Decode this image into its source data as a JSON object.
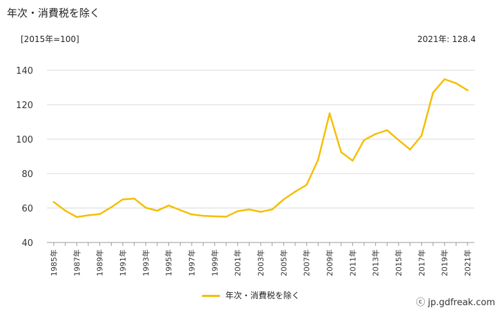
{
  "title": "年次・消費税を除く",
  "unit_label": "[2015年=100]",
  "latest_label": "2021年: 128.4",
  "source": "ⓒ jp.gdfreak.com",
  "colors": {
    "line": "#F5BE00",
    "grid": "#d9d9d9",
    "axis": "#999999"
  },
  "chart_data": {
    "type": "line",
    "title": "年次・消費税を除く",
    "xlabel": "",
    "ylabel": "[2015年=100]",
    "ylim": [
      40,
      140
    ],
    "yticks": [
      40,
      60,
      80,
      100,
      120,
      140
    ],
    "grid": true,
    "legend_position": "bottom",
    "x": [
      "1985年",
      "1986年",
      "1987年",
      "1988年",
      "1989年",
      "1990年",
      "1991年",
      "1992年",
      "1993年",
      "1994年",
      "1995年",
      "1996年",
      "1997年",
      "1998年",
      "1999年",
      "2000年",
      "2001年",
      "2002年",
      "2003年",
      "2004年",
      "2005年",
      "2006年",
      "2007年",
      "2008年",
      "2009年",
      "2010年",
      "2011年",
      "2012年",
      "2013年",
      "2014年",
      "2015年",
      "2016年",
      "2017年",
      "2018年",
      "2019年",
      "2020年",
      "2021年"
    ],
    "xtick_labels": [
      "1985年",
      "1987年",
      "1989年",
      "1991年",
      "1993年",
      "1995年",
      "1997年",
      "1999年",
      "2001年",
      "2003年",
      "2005年",
      "2007年",
      "2009年",
      "2011年",
      "2013年",
      "2015年",
      "2017年",
      "2019年",
      "2021年"
    ],
    "series": [
      {
        "name": "年次・消費税を除く",
        "values": [
          63.5,
          58.5,
          54.8,
          55.8,
          56.5,
          60.5,
          65.0,
          65.5,
          60.2,
          58.5,
          61.5,
          58.8,
          56.3,
          55.5,
          55.2,
          55.0,
          58.2,
          59.2,
          57.8,
          59.2,
          65.0,
          69.5,
          73.5,
          88.0,
          115.0,
          92.5,
          87.5,
          99.5,
          103.0,
          105.2,
          99.5,
          94.0,
          102.0,
          127.0,
          134.8,
          132.5,
          128.4
        ]
      }
    ]
  }
}
